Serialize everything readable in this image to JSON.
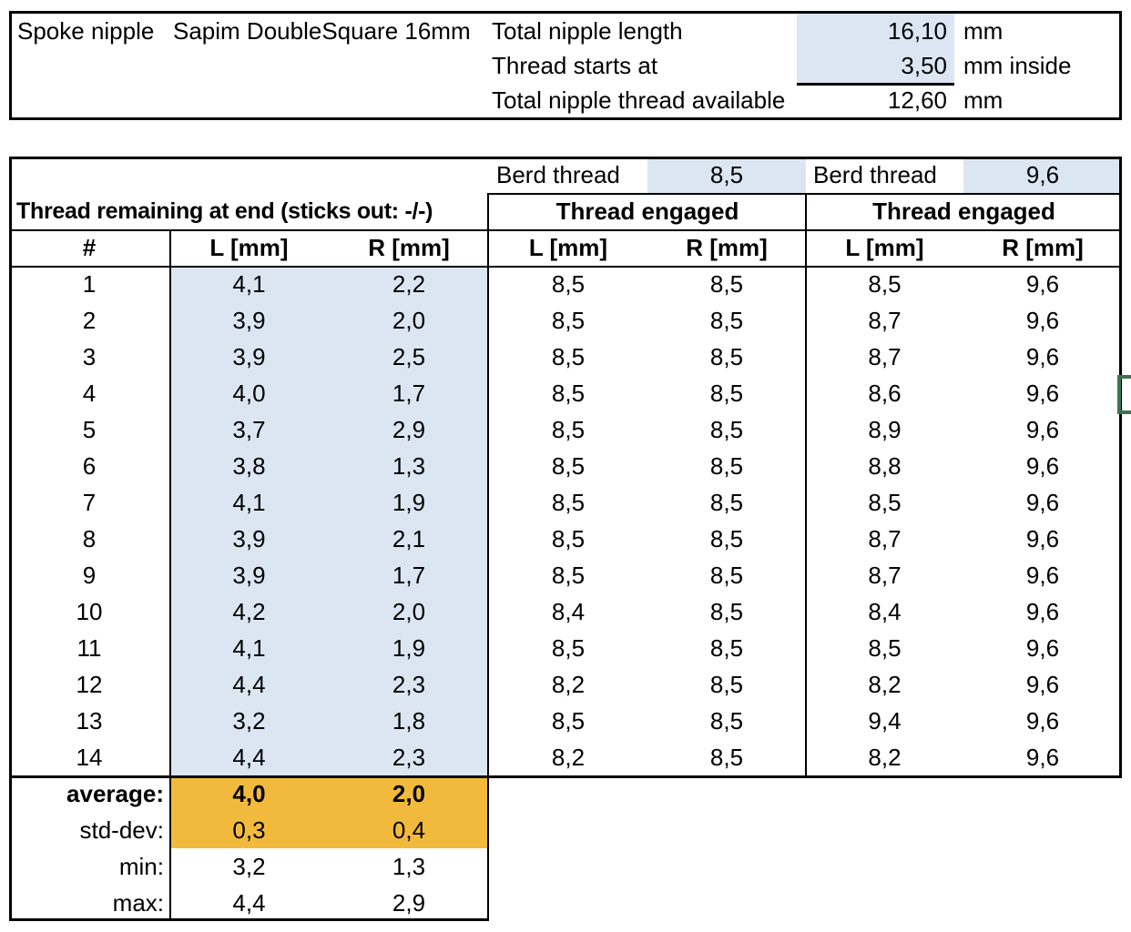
{
  "info_box": {
    "item_label": "Spoke nipple",
    "item_value": "Sapim DoubleSquare 16mm",
    "rows": [
      {
        "label": "Total nipple length",
        "value": "16,10",
        "unit": "mm"
      },
      {
        "label": "Thread starts at",
        "value": "3,50",
        "unit": "mm inside"
      },
      {
        "label": "Total nipple thread available",
        "value": "12,60",
        "unit": "mm"
      }
    ]
  },
  "table": {
    "berd1_label": "Berd thread",
    "berd1_value": "8,5",
    "berd2_label": "Berd thread",
    "berd2_value": "9,6",
    "left_title": "Thread remaining at end (sticks out: -/-)",
    "engaged_title_1": "Thread engaged",
    "engaged_title_2": "Thread engaged",
    "col_headers": [
      "#",
      "L [mm]",
      "R [mm]",
      "L [mm]",
      "R [mm]",
      "L [mm]",
      "R [mm]"
    ],
    "rows": [
      [
        "1",
        "4,1",
        "2,2",
        "8,5",
        "8,5",
        "8,5",
        "9,6"
      ],
      [
        "2",
        "3,9",
        "2,0",
        "8,5",
        "8,5",
        "8,7",
        "9,6"
      ],
      [
        "3",
        "3,9",
        "2,5",
        "8,5",
        "8,5",
        "8,7",
        "9,6"
      ],
      [
        "4",
        "4,0",
        "1,7",
        "8,5",
        "8,5",
        "8,6",
        "9,6"
      ],
      [
        "5",
        "3,7",
        "2,9",
        "8,5",
        "8,5",
        "8,9",
        "9,6"
      ],
      [
        "6",
        "3,8",
        "1,3",
        "8,5",
        "8,5",
        "8,8",
        "9,6"
      ],
      [
        "7",
        "4,1",
        "1,9",
        "8,5",
        "8,5",
        "8,5",
        "9,6"
      ],
      [
        "8",
        "3,9",
        "2,1",
        "8,5",
        "8,5",
        "8,7",
        "9,6"
      ],
      [
        "9",
        "3,9",
        "1,7",
        "8,5",
        "8,5",
        "8,7",
        "9,6"
      ],
      [
        "10",
        "4,2",
        "2,0",
        "8,4",
        "8,5",
        "8,4",
        "9,6"
      ],
      [
        "11",
        "4,1",
        "1,9",
        "8,5",
        "8,5",
        "8,5",
        "9,6"
      ],
      [
        "12",
        "4,4",
        "2,3",
        "8,2",
        "8,5",
        "8,2",
        "9,6"
      ],
      [
        "13",
        "3,2",
        "1,8",
        "8,5",
        "8,5",
        "9,4",
        "9,6"
      ],
      [
        "14",
        "4,4",
        "2,3",
        "8,2",
        "8,5",
        "8,2",
        "9,6"
      ]
    ],
    "summary": [
      {
        "label": "average:",
        "l": "4,0",
        "r": "2,0"
      },
      {
        "label": "std-dev:",
        "l": "0,3",
        "r": "0,4"
      },
      {
        "label": "min:",
        "l": "3,2",
        "r": "1,3"
      },
      {
        "label": "max:",
        "l": "4,4",
        "r": "2,9"
      }
    ]
  },
  "colors": {
    "highlight_blue": "#dce6f2",
    "highlight_orange": "#f2ba3c",
    "selection_green": "#3e7350",
    "grid_border": "#000000"
  }
}
